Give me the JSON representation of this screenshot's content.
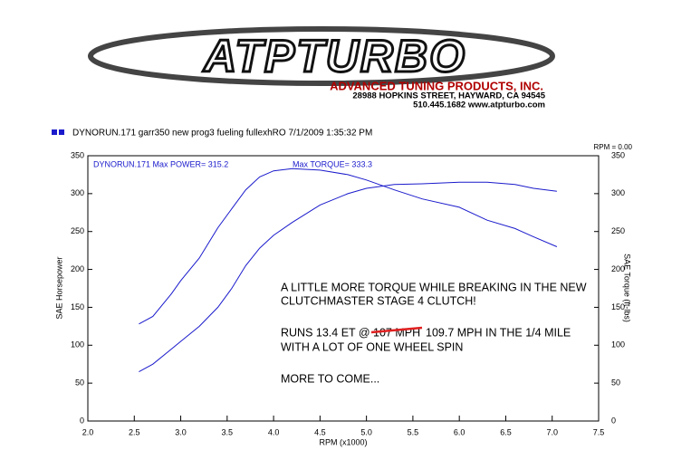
{
  "header": {
    "logo": "ATPTURBO",
    "company": "ADVANCED TUNING PRODUCTS, INC.",
    "address": "28988 HOPKINS STREET, HAYWARD, CA 94545",
    "contact": "510.445.1682 www.atpturbo.com"
  },
  "chart_data": {
    "type": "line",
    "legend_text": "DYNORUN.171   garr350 new prog3 fueling fullexhRO  7/1/2009 1:35:32 PM",
    "readout": "RPM = 0.00",
    "max_power": "DYNORUN.171  Max POWER= 315.2",
    "max_torque": "Max TORQUE= 333.3",
    "xlabel": "RPM (x1000)",
    "ylabel": "SAE Horsepower",
    "y2label": "SAE Torque (ft-lbs)",
    "annotations": [
      "A LITTLE MORE TORQUE WHILE BREAKING IN THE NEW",
      "CLUTCHMASTER STAGE 4 CLUTCH!",
      "RUNS 13.4 ET @",
      "107 MPH",
      "109.7 MPH IN THE 1/4 MILE",
      "WITH A LOT OF ONE WHEEL SPIN",
      "MORE TO COME..."
    ],
    "x": [
      2.55,
      2.7,
      2.9,
      3.0,
      3.2,
      3.4,
      3.55,
      3.7,
      3.85,
      4.0,
      4.2,
      4.5,
      4.8,
      5.0,
      5.3,
      5.6,
      6.0,
      6.3,
      6.6,
      6.8,
      7.05
    ],
    "series": [
      {
        "color": "#1a1acc",
        "values": [
          65,
          75,
          95,
          105,
          125,
          150,
          175,
          205,
          228,
          245,
          262,
          285,
          300,
          307,
          312,
          313,
          315,
          315,
          312,
          307,
          303
        ]
      },
      {
        "color": "#1a1acc",
        "axis": "y2",
        "values": [
          128,
          138,
          168,
          185,
          215,
          255,
          280,
          305,
          322,
          330,
          333,
          331,
          325,
          318,
          305,
          293,
          282,
          265,
          254,
          243,
          230
        ]
      }
    ],
    "xlim": [
      2,
      7.5
    ],
    "xticks": [
      {
        "value": 2,
        "label": "2.0"
      },
      {
        "value": 2.5,
        "label": "2.5"
      },
      {
        "value": 3,
        "label": "3.0"
      },
      {
        "value": 3.5,
        "label": "3.5"
      },
      {
        "value": 4,
        "label": "4.0"
      },
      {
        "value": 4.5,
        "label": "4.5"
      },
      {
        "value": 5,
        "label": "5.0"
      },
      {
        "value": 5.5,
        "label": "5.5"
      },
      {
        "value": 6,
        "label": "6.0"
      },
      {
        "value": 6.5,
        "label": "6.5"
      },
      {
        "value": 7,
        "label": "7.0"
      },
      {
        "value": 7.5,
        "label": "7.5"
      }
    ],
    "ylim": [
      0,
      350
    ],
    "yticks": [
      0,
      50,
      100,
      150,
      200,
      250,
      300,
      350
    ],
    "y2lim": [
      0,
      350
    ],
    "y2ticks": [
      0,
      50,
      100,
      150,
      200,
      250,
      300,
      350
    ],
    "grid": false
  }
}
